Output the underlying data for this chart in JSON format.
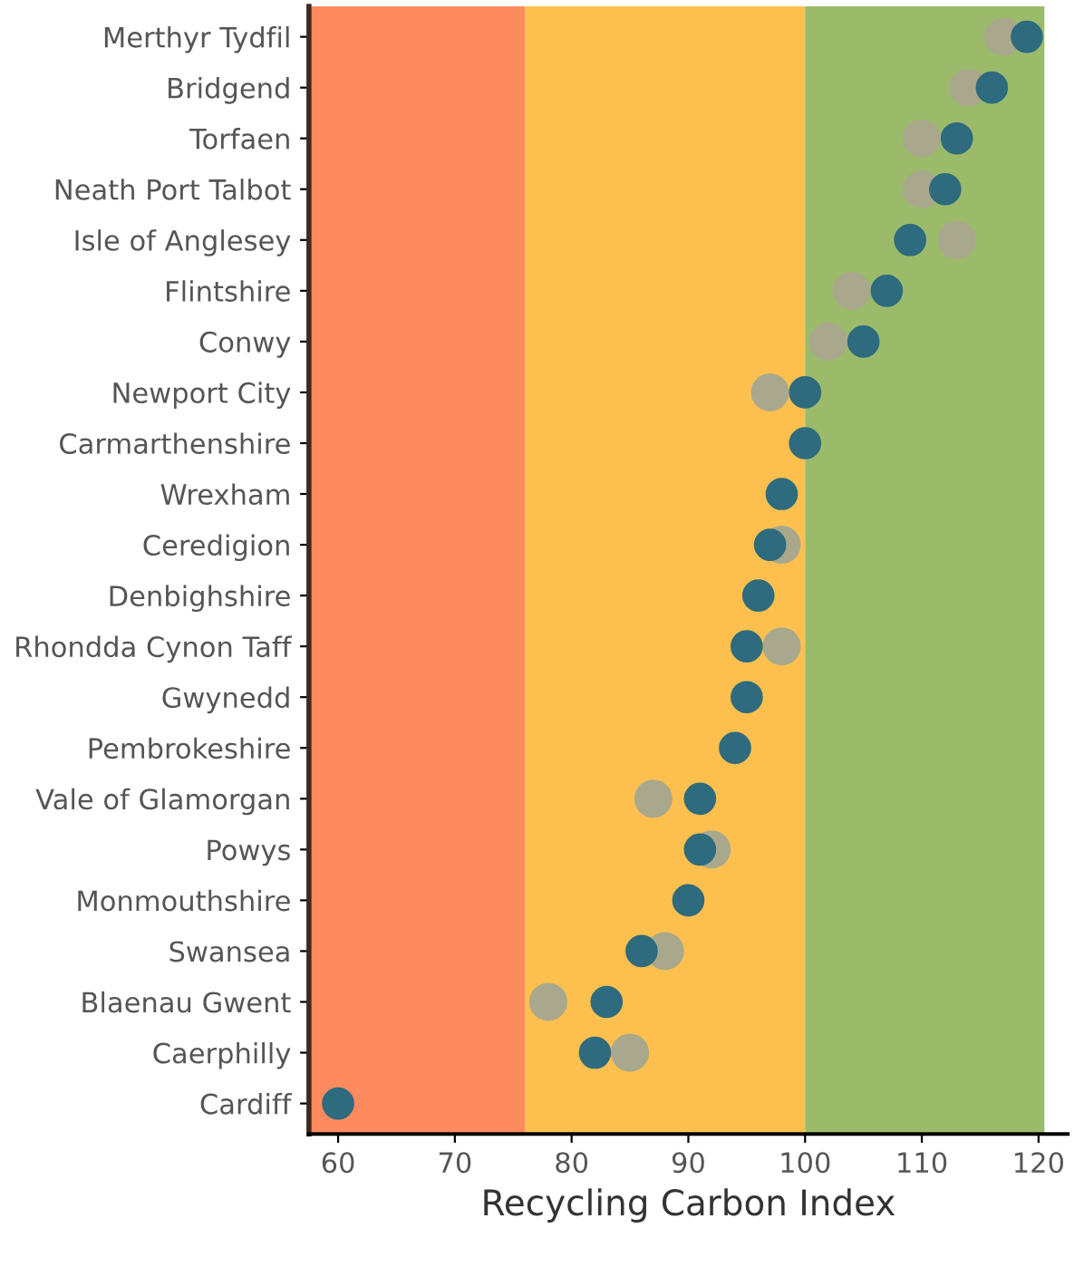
{
  "chart_data": {
    "type": "scatter",
    "orientation": "horizontal",
    "xlabel": "Recycling Carbon Index",
    "categories": [
      "Merthyr Tydfil",
      "Bridgend",
      "Torfaen",
      "Neath Port Talbot",
      "Isle of Anglesey",
      "Flintshire",
      "Conwy",
      "Newport City",
      "Carmarthenshire",
      "Wrexham",
      "Ceredigion",
      "Denbighshire",
      "Rhondda Cynon Taff",
      "Gwynedd",
      "Pembrokeshire",
      "Vale of Glamorgan",
      "Powys",
      "Monmouthshire",
      "Swansea",
      "Blaenau Gwent",
      "Caerphilly",
      "Cardiff"
    ],
    "series": [
      {
        "color": "#a9a88c",
        "values": [
          117,
          114,
          110,
          110,
          113,
          104,
          102,
          97,
          null,
          null,
          98,
          null,
          98,
          null,
          null,
          87,
          92,
          null,
          88,
          78,
          85,
          null
        ]
      },
      {
        "color": "#2e6b7e",
        "values": [
          119,
          116,
          113,
          112,
          109,
          107,
          105,
          100,
          100,
          98,
          97,
          96,
          95,
          95,
          94,
          91,
          91,
          90,
          86,
          83,
          82,
          60
        ]
      }
    ],
    "bands": [
      {
        "axis": "x",
        "from": 57.5,
        "to": 76,
        "color": "#fe8a5f"
      },
      {
        "axis": "x",
        "from": 76,
        "to": 100,
        "color": "#fdc04f"
      },
      {
        "axis": "x",
        "from": 100,
        "to": 120.5,
        "color": "#9bbb6b"
      }
    ],
    "xlim": [
      57.5,
      122.5
    ],
    "xticks": [
      60,
      70,
      80,
      90,
      100,
      110,
      120
    ],
    "marker": "circle",
    "grid": false,
    "legend": false
  }
}
